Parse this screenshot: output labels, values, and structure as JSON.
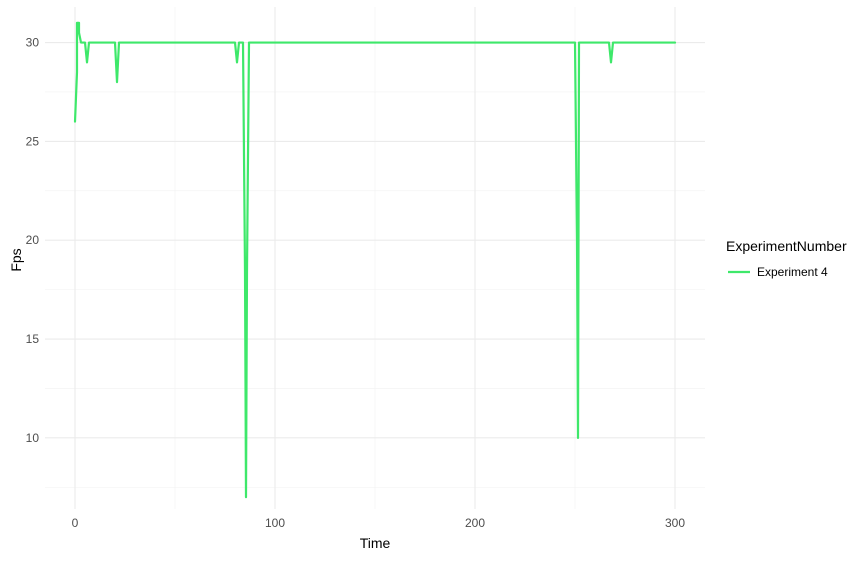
{
  "chart_data": {
    "type": "line",
    "title": "",
    "xlabel": "Time",
    "ylabel": "Fps",
    "xlim": [
      -15,
      315
    ],
    "ylim": [
      6.4,
      31.8
    ],
    "x_ticks": [
      0,
      100,
      200,
      300
    ],
    "y_ticks": [
      10,
      15,
      20,
      25,
      30
    ],
    "grid": true,
    "legend": {
      "title": "ExperimentNumber",
      "position": "right"
    },
    "series": [
      {
        "name": "Experiment 4",
        "color": "#3ee86a",
        "x": [
          0,
          1,
          1,
          2,
          2,
          3,
          4,
          5,
          6,
          7,
          8,
          20,
          21,
          22,
          23,
          80,
          81,
          82,
          83,
          84,
          85,
          85.5,
          86,
          87,
          250,
          251,
          251.5,
          252,
          253,
          267,
          268,
          269,
          270,
          300
        ],
        "values": [
          26,
          28.5,
          31,
          31,
          30.5,
          30,
          30,
          30,
          29,
          30,
          30,
          30,
          28,
          30,
          30,
          30,
          29,
          30,
          30,
          30,
          18.5,
          7,
          18.5,
          30,
          30,
          20,
          10,
          30,
          30,
          30,
          29,
          30,
          30,
          30
        ]
      }
    ]
  }
}
